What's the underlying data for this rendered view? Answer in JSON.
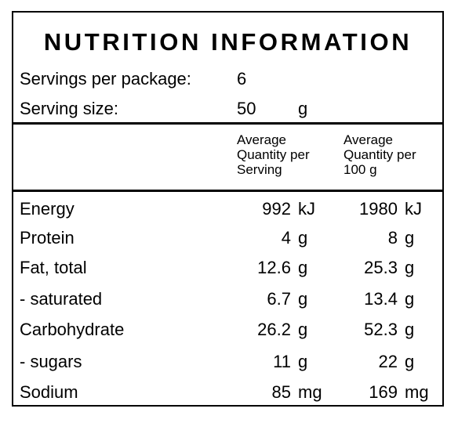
{
  "panel": {
    "title": "NUTRITION INFORMATION",
    "servings_label": "Servings per package:",
    "servings_value": "6",
    "serving_size_label": "Serving size:",
    "serving_size_value": "50",
    "serving_size_unit": "g"
  },
  "header": {
    "per_serving": [
      "Average",
      "Quantity per",
      "Serving"
    ],
    "per_100g": [
      "Average",
      "Quantity per",
      "100 g"
    ]
  },
  "rows": [
    {
      "label": "Energy",
      "serving": "992",
      "serving_unit": "kJ",
      "per100": "1980",
      "per100_unit": "kJ"
    },
    {
      "label": "Protein",
      "serving": "4",
      "serving_unit": "g",
      "per100": "8",
      "per100_unit": "g"
    },
    {
      "label": "Fat, total",
      "serving": "12.6",
      "serving_unit": "g",
      "per100": "25.3",
      "per100_unit": "g"
    },
    {
      "label": "- saturated",
      "serving": "6.7",
      "serving_unit": "g",
      "per100": "13.4",
      "per100_unit": "g"
    },
    {
      "label": "Carbohydrate",
      "serving": "26.2",
      "serving_unit": "g",
      "per100": "52.3",
      "per100_unit": "g"
    },
    {
      "label": "- sugars",
      "serving": "11",
      "serving_unit": "g",
      "per100": "22",
      "per100_unit": "g"
    },
    {
      "label": "Sodium",
      "serving": "85",
      "serving_unit": "mg",
      "per100": "169",
      "per100_unit": "mg"
    }
  ]
}
